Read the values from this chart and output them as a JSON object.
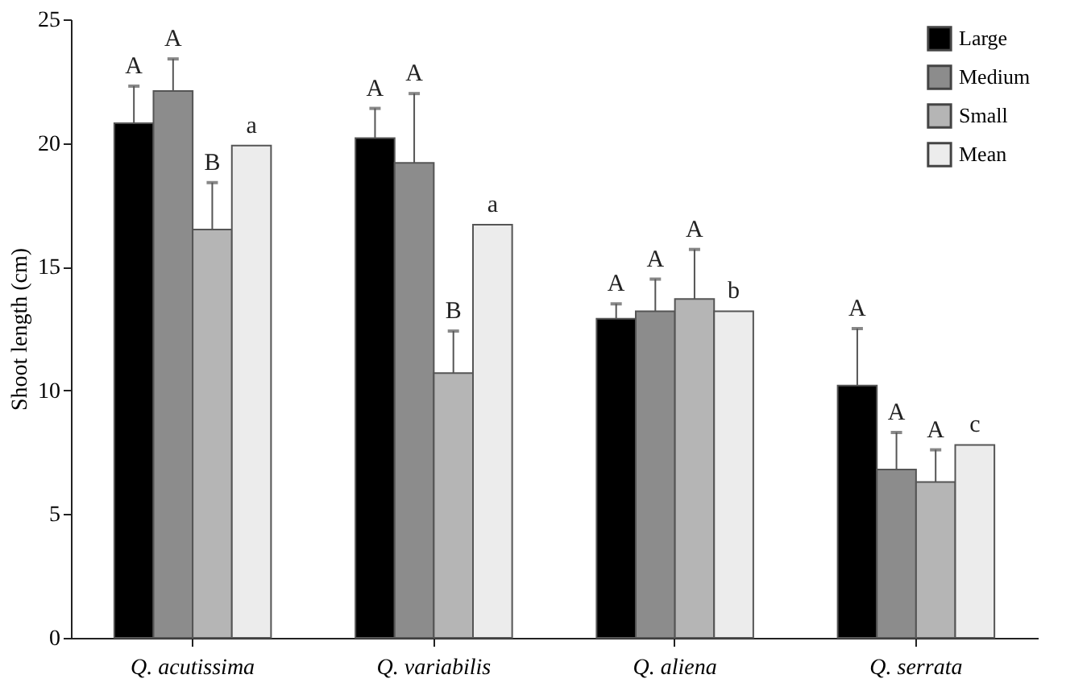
{
  "chart_data": {
    "type": "bar",
    "ylabel": "Shoot length (cm)",
    "categories": [
      "Q. acutissima",
      "Q. variabilis",
      "Q. aliena",
      "Q. serrata"
    ],
    "series": [
      {
        "name": "Large",
        "color": "#000000",
        "values": [
          20.8,
          20.2,
          12.9,
          10.2
        ],
        "errors": [
          [
            20.8,
            22.3
          ],
          [
            20.2,
            21.4
          ],
          [
            12.9,
            13.5
          ],
          [
            10.2,
            12.5
          ]
        ]
      },
      {
        "name": "Medium",
        "color": "#8c8c8c",
        "values": [
          22.1,
          19.2,
          13.2,
          6.8
        ],
        "errors": [
          [
            22.1,
            23.4
          ],
          [
            19.2,
            22.0
          ],
          [
            13.2,
            14.5
          ],
          [
            6.8,
            8.3
          ]
        ]
      },
      {
        "name": "Small",
        "color": "#b5b5b5",
        "values": [
          16.5,
          10.7,
          13.7,
          6.3
        ],
        "errors": [
          [
            16.5,
            18.4
          ],
          [
            10.7,
            12.4
          ],
          [
            13.7,
            15.7
          ],
          [
            6.3,
            7.6
          ]
        ]
      },
      {
        "name": "Mean",
        "color": "#ececec",
        "values": [
          19.9,
          16.7,
          13.2,
          7.8
        ]
      }
    ],
    "annotations": [
      "A",
      "A",
      "B",
      "a",
      "A",
      "A",
      "B",
      "a",
      "A",
      "A",
      "A",
      "b",
      "A",
      "A",
      "A",
      "c"
    ],
    "ylim": [
      0,
      25
    ],
    "yticks": [
      0,
      5,
      10,
      15,
      20,
      25
    ],
    "grid": false,
    "legend": "top right"
  }
}
